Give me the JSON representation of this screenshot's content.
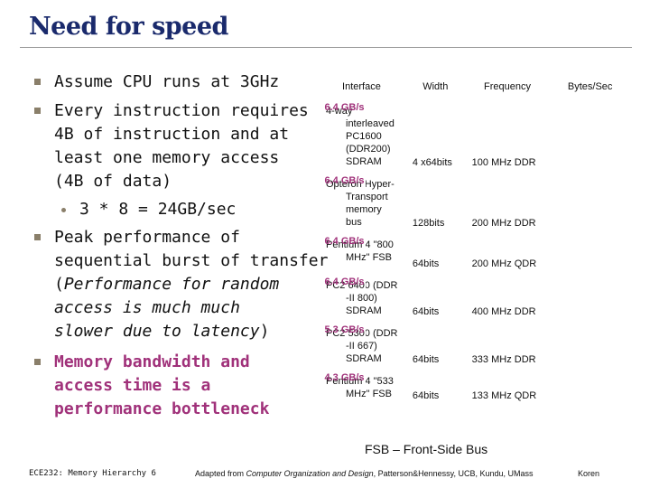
{
  "slide": {
    "title": "Need for speed"
  },
  "bullets": {
    "b1": "Assume CPU runs at 3GHz",
    "b2_l1": "Every instruction requires",
    "b2_l2": "4B of instruction and at",
    "b2_l3": "least one memory access",
    "b2_l4": "(4B of data)",
    "b2_sub": "3 * 8 = 24GB/sec",
    "b3_l1": "Peak performance of",
    "b3_l2": "sequential burst of transfer",
    "b3_l3_open": "(",
    "b3_l3_em": "Performance for random",
    "b3_l4_em": "access is much much",
    "b3_l5_em": "slower due to latency",
    "b3_l5_close": ")",
    "b4_l1": "Memory bandwidth and",
    "b4_l2": "access time is a",
    "b4_l3": "performance bottleneck"
  },
  "table": {
    "headers": {
      "interface": "Interface",
      "width": "Width",
      "frequency": "Frequency",
      "bytes": "Bytes/Sec"
    },
    "rows": [
      {
        "iface": [
          "4-way",
          "interleaved",
          "PC1600",
          "(DDR200)",
          "SDRAM"
        ],
        "width": "4 x64bits",
        "freq": "100 MHz DDR",
        "bytes": "6.4 GB/s"
      },
      {
        "iface": [
          "Opteron Hyper-",
          "Transport",
          "memory",
          "bus"
        ],
        "width": "128bits",
        "freq": "200 MHz DDR",
        "bytes": "6.4 GB/s"
      },
      {
        "iface": [
          "Pentium 4 \"800",
          "MHz\" FSB"
        ],
        "width": "64bits",
        "freq": "200 MHz QDR",
        "bytes": "6.4 GB/s"
      },
      {
        "iface": [
          "PC2 6400 (DDR",
          "-II 800)",
          "SDRAM"
        ],
        "width": "64bits",
        "freq": "400 MHz DDR",
        "bytes": "6.4 GB/s"
      },
      {
        "iface": [
          "PC2 5300 (DDR",
          "-II 667)",
          "SDRAM"
        ],
        "width": "64bits",
        "freq": "333 MHz DDR",
        "bytes": "5.3 GB/s"
      },
      {
        "iface": [
          "Pentium 4 \"533",
          "MHz\" FSB"
        ],
        "width": "64bits",
        "freq": "133 MHz QDR",
        "bytes": "4.3 GB/s"
      }
    ]
  },
  "caption": "FSB – Front-Side Bus",
  "footer": {
    "course": "ECE232: Memory Hierarchy 6",
    "credit_prefix": "Adapted from ",
    "credit_book": "Computer Organization and Design",
    "credit_suffix": ", Patterson&Hennessy, UCB, Kundu, UMass",
    "author": "Koren"
  }
}
